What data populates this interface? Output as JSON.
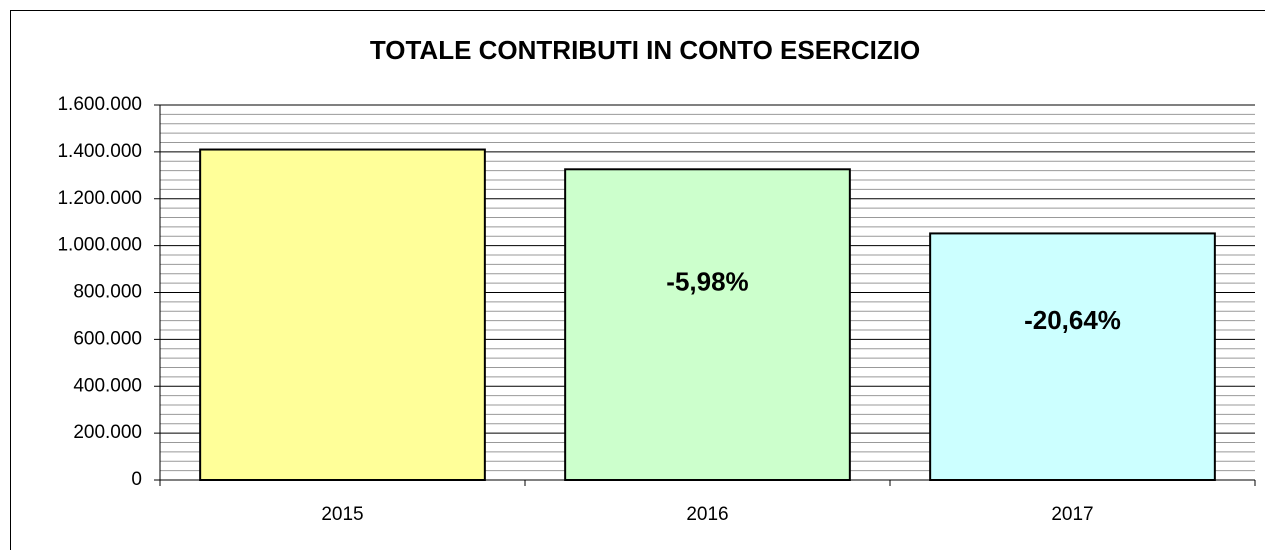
{
  "chart_data": {
    "type": "bar",
    "title": "TOTALE CONTRIBUTI IN CONTO ESERCIZIO",
    "categories": [
      "2015",
      "2016",
      "2017"
    ],
    "values": [
      1410000,
      1325700,
      1052100
    ],
    "colors": [
      "#ffff99",
      "#ccffcc",
      "#ccffff"
    ],
    "annotations": [
      {
        "text": "-5,98%",
        "category": "2016"
      },
      {
        "text": "-20,64%",
        "category": "2017"
      }
    ],
    "ylim": [
      0,
      1600000
    ],
    "yticks": [
      0,
      {
        "value": 200000,
        "label": "200.000"
      },
      {
        "value": 400000,
        "label": "400.000"
      },
      {
        "value": 600000,
        "label": "600.000"
      },
      {
        "value": 800000,
        "label": "800.000"
      },
      {
        "value": 1000000,
        "label": "1.000.000"
      },
      {
        "value": 1200000,
        "label": "1.200.000"
      },
      {
        "value": 1400000,
        "label": "1.400.000"
      },
      {
        "value": 1600000,
        "label": "1.600.000"
      }
    ],
    "grid": true,
    "minor_grid": 5
  }
}
